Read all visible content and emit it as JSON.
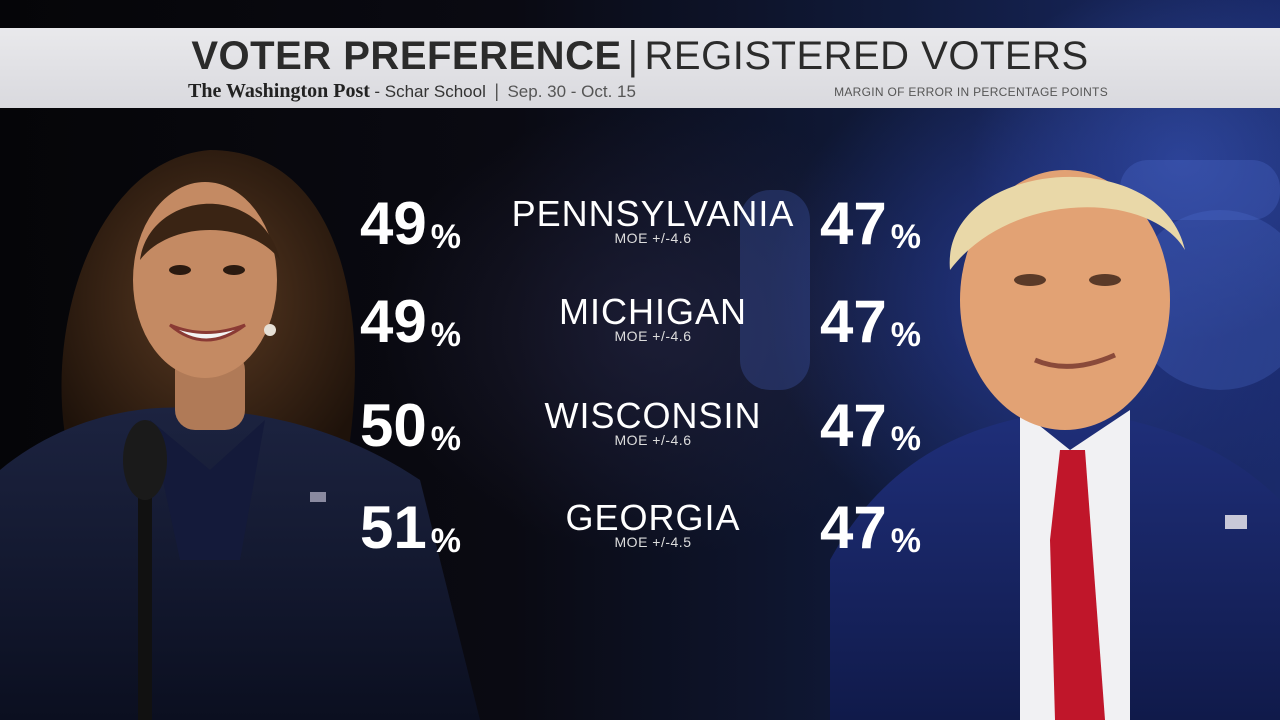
{
  "header": {
    "title_left": "VOTER PREFERENCE",
    "title_sep": "|",
    "title_right": "REGISTERED VOTERS",
    "source": "The Washington Post",
    "sponsor": "- Schar School",
    "sub_sep": "|",
    "dates": "Sep. 30 - Oct. 15",
    "moe_note": "MARGIN OF ERROR IN PERCENTAGE POINTS"
  },
  "percent_symbol": "%",
  "rows": [
    {
      "state": "PENNSYLVANIA",
      "moe": "MOE +/-4.6",
      "left": "49",
      "right": "47"
    },
    {
      "state": "MICHIGAN",
      "moe": "MOE +/-4.6",
      "left": "49",
      "right": "47"
    },
    {
      "state": "WISCONSIN",
      "moe": "MOE +/-4.6",
      "left": "50",
      "right": "47"
    },
    {
      "state": "GEORGIA",
      "moe": "MOE +/-4.5",
      "left": "51",
      "right": "47"
    }
  ],
  "colors": {
    "header_bg": "#e2e2e6",
    "title_text": "#2b2b2b",
    "figure_text": "#ffffff",
    "bg_blue": "#1a2a6a"
  }
}
